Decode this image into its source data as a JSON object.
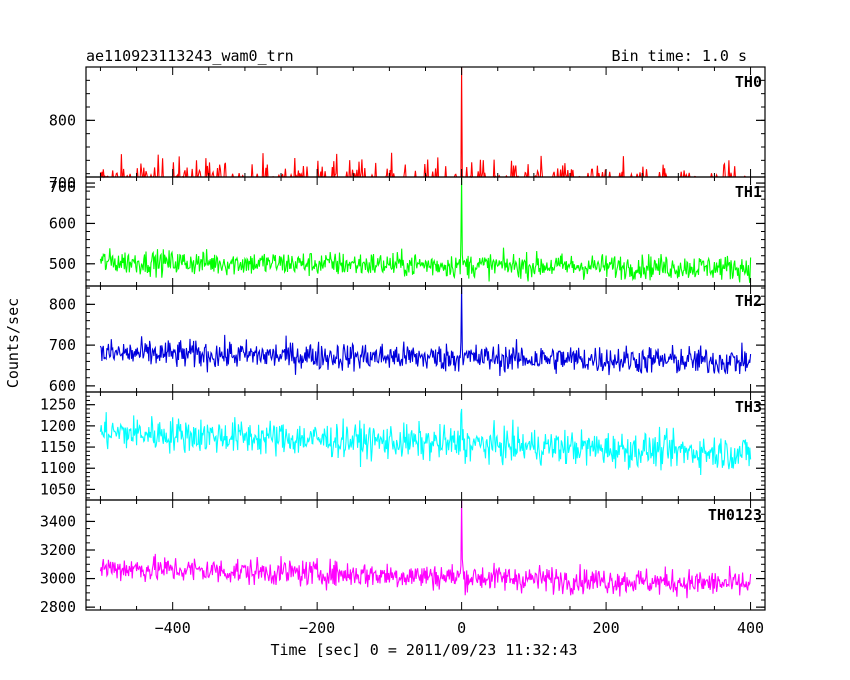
{
  "header": {
    "title": "ae110923113243_wam0_trn",
    "bin_time": "Bin time: 1.0 s"
  },
  "axes": {
    "ylabel": "Counts/sec",
    "xlabel": "Time [sec] 0 = 2011/09/23 11:32:43"
  },
  "chart_data": {
    "type": "line",
    "x": {
      "start": -500,
      "end": 400,
      "step": 1,
      "range": [
        -520,
        420
      ],
      "major_ticks": [
        -400,
        -200,
        0,
        200,
        400
      ],
      "minor_step": 50
    },
    "panels": [
      {
        "name": "TH0",
        "color": "#ff0000",
        "ylim": [
          715,
          880
        ],
        "ticks": [
          700,
          800
        ],
        "tick_labels": [
          "700",
          "800"
        ],
        "minor_step": 20,
        "baseline_start": 700,
        "baseline_end": 690,
        "noise": 40,
        "burst_peak": 880
      },
      {
        "name": "TH1",
        "color": "#00ff00",
        "ylim": [
          445,
          715
        ],
        "ticks": [
          500,
          600,
          700
        ],
        "tick_labels": [
          "500",
          "600",
          "700"
        ],
        "minor_step": 20,
        "baseline_start": 505,
        "baseline_end": 490,
        "noise": 28,
        "burst_peak": 715
      },
      {
        "name": "TH2",
        "color": "#0000dd",
        "ylim": [
          585,
          845
        ],
        "ticks": [
          600,
          700,
          800
        ],
        "tick_labels": [
          "600",
          "700",
          "800"
        ],
        "minor_step": 20,
        "baseline_start": 680,
        "baseline_end": 660,
        "noise": 32,
        "burst_peak": 845
      },
      {
        "name": "TH3",
        "color": "#00ffff",
        "ylim": [
          1025,
          1280
        ],
        "ticks": [
          1050,
          1100,
          1150,
          1200,
          1250
        ],
        "tick_labels": [
          "1050",
          "1100",
          "1150",
          "1200",
          "1250"
        ],
        "minor_step": 10,
        "baseline_start": 1185,
        "baseline_end": 1135,
        "noise": 38,
        "burst_peak": 1240
      },
      {
        "name": "TH0123",
        "color": "#ff00ff",
        "ylim": [
          2780,
          3550
        ],
        "ticks": [
          2800,
          3000,
          3200,
          3400
        ],
        "tick_labels": [
          "2800",
          "3000",
          "3200",
          "3400"
        ],
        "minor_step": 50,
        "baseline_start": 3075,
        "baseline_end": 2960,
        "noise": 85,
        "burst_peak": 3550
      }
    ]
  }
}
